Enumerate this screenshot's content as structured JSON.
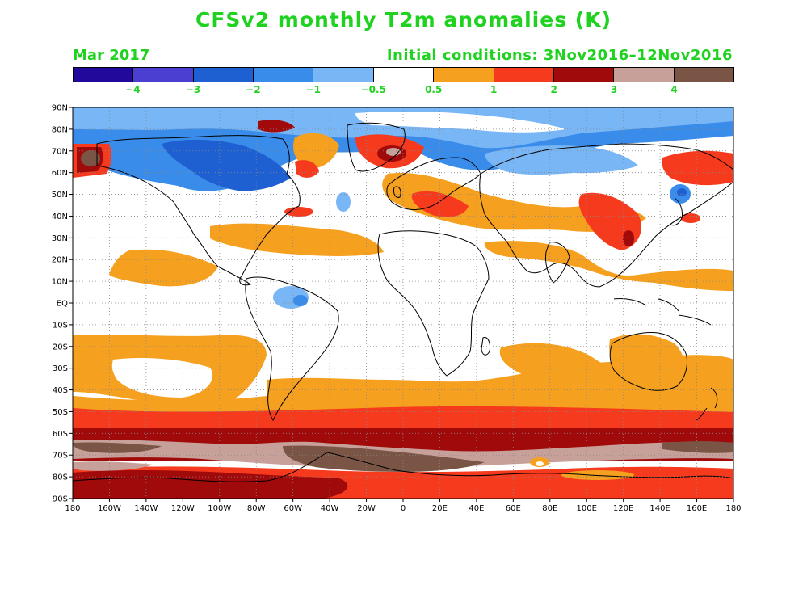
{
  "title": "CFSv2 monthly T2m anomalies (K)",
  "forecast_month": "Mar 2017",
  "initial_conditions": "Initial conditions: 3Nov2016–12Nov2016",
  "colorbar": {
    "colors": [
      "#23099b",
      "#4b3fd2",
      "#1e5fd2",
      "#3a8cea",
      "#78b6f5",
      "#ffffff",
      "#f5a01e",
      "#f53a1e",
      "#a00a0a",
      "#c8a09a",
      "#7a5546"
    ],
    "labels": [
      "−4",
      "−3",
      "−2",
      "−1",
      "−0.5",
      "0.5",
      "1",
      "2",
      "3",
      "4"
    ]
  },
  "axes": {
    "lat_labels": [
      "90N",
      "80N",
      "70N",
      "60N",
      "50N",
      "40N",
      "30N",
      "20N",
      "10N",
      "EQ",
      "10S",
      "20S",
      "30S",
      "40S",
      "50S",
      "60S",
      "70S",
      "80S",
      "90S"
    ],
    "lon_labels": [
      "180",
      "160W",
      "140W",
      "120W",
      "100W",
      "80W",
      "60W",
      "40W",
      "20W",
      "0",
      "20E",
      "40E",
      "60E",
      "80E",
      "100E",
      "120E",
      "140E",
      "160E",
      "180"
    ]
  }
}
